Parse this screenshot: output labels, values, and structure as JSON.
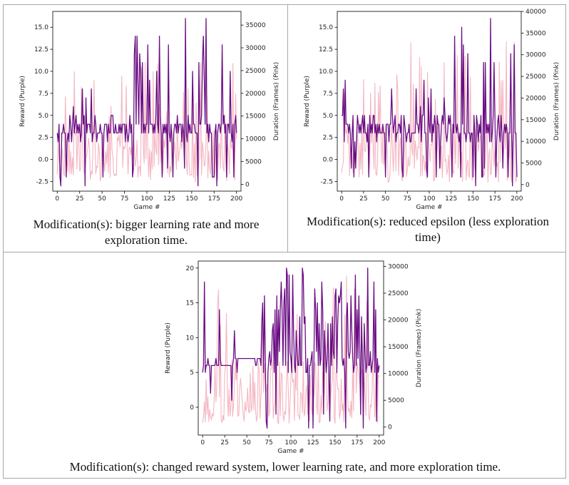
{
  "colors": {
    "reward": "#6a0d83",
    "duration": "#f4b6c2",
    "border": "#a7a7a7"
  },
  "charts": [
    {
      "caption": "Modification(s): bigger learning rate and more exploration time.",
      "chart_data": {
        "type": "line",
        "xlabel": "Game #",
        "ylabel_left": "Reward (Purple)",
        "ylabel_right": "Duration (Frames) (Pink)",
        "xlim": [
          -5,
          205
        ],
        "ylim_left": [
          -3.6,
          16.8
        ],
        "ylim_right": [
          -1500,
          38000
        ],
        "x_ticks": [
          0,
          25,
          50,
          75,
          100,
          125,
          150,
          175,
          200
        ],
        "y_ticks_left": [
          -2.5,
          0.0,
          2.5,
          5.0,
          7.5,
          10.0,
          12.5,
          15.0
        ],
        "y_ticks_right": [
          0,
          5000,
          10000,
          15000,
          20000,
          25000,
          30000,
          35000
        ],
        "series": [
          {
            "name": "Reward (Purple)",
            "axis": "left",
            "color": "#6a0d83",
            "seed": 11,
            "segments": [
              {
                "to": 80,
                "base": 3.5,
                "jitter": 1.3,
                "spikeP": 0.08,
                "spikeHi": 9.0,
                "spikeLo": -3.0,
                "dipP": 0.08
              },
              {
                "to": 201,
                "base": 3.5,
                "jitter": 1.2,
                "spikeP": 0.22,
                "spikeHi": 16.0,
                "spikeLo": -3.0,
                "dipP": 0.1
              }
            ]
          },
          {
            "name": "Duration (Frames) (Pink)",
            "axis": "right",
            "color": "#f4b6c2",
            "seed": 29,
            "segments": [
              {
                "to": 201,
                "base": 7000,
                "jitter": 5000,
                "spikeP": 0.12,
                "spikeHi": 27000,
                "spikeLo": 400,
                "dipP": 0.2
              }
            ]
          }
        ]
      }
    },
    {
      "caption": "Modification(s): reduced epsilon (less exploration time)",
      "chart_data": {
        "type": "line",
        "xlabel": "Game #",
        "ylabel_left": "Reward (Purple)",
        "ylabel_right": "Duration (Frames) (Pink)",
        "xlim": [
          -5,
          205
        ],
        "ylim_left": [
          -3.6,
          16.8
        ],
        "ylim_right": [
          -1500,
          40000
        ],
        "x_ticks": [
          0,
          25,
          50,
          75,
          100,
          125,
          150,
          175,
          200
        ],
        "y_ticks_left": [
          -2.5,
          0.0,
          2.5,
          5.0,
          7.5,
          10.0,
          12.5,
          15.0
        ],
        "y_ticks_right": [
          0,
          5000,
          10000,
          15000,
          20000,
          25000,
          30000,
          35000,
          40000
        ],
        "series": [
          {
            "name": "Reward (Purple)",
            "axis": "left",
            "color": "#6a0d83",
            "seed": 7,
            "segments": [
              {
                "to": 120,
                "base": 3.5,
                "jitter": 1.4,
                "spikeP": 0.07,
                "spikeHi": 9.0,
                "spikeLo": -2.5,
                "dipP": 0.1
              },
              {
                "to": 201,
                "base": 3.5,
                "jitter": 1.5,
                "spikeP": 0.14,
                "spikeHi": 16.0,
                "spikeLo": -3.0,
                "dipP": 0.14
              }
            ]
          },
          {
            "name": "Duration (Frames) (Pink)",
            "axis": "right",
            "color": "#f4b6c2",
            "seed": 41,
            "segments": [
              {
                "to": 201,
                "base": 8000,
                "jitter": 6000,
                "spikeP": 0.1,
                "spikeHi": 33000,
                "spikeLo": 500,
                "dipP": 0.18
              }
            ]
          }
        ]
      }
    },
    {
      "caption": "Modification(s): changed reward system, lower learning rate, and more exploration time.",
      "chart_data": {
        "type": "line",
        "xlabel": "Game #",
        "ylabel_left": "Reward (Purple)",
        "ylabel_right": "Duration (Frames) (Pink)",
        "xlim": [
          -5,
          205
        ],
        "ylim_left": [
          -4,
          21
        ],
        "ylim_right": [
          -1500,
          31000
        ],
        "x_ticks": [
          0,
          25,
          50,
          75,
          100,
          125,
          150,
          175,
          200
        ],
        "y_ticks_left": [
          0,
          5,
          10,
          15,
          20
        ],
        "y_ticks_right": [
          0,
          5000,
          10000,
          15000,
          20000,
          25000,
          30000
        ],
        "series": [
          {
            "name": "Reward (Purple)",
            "axis": "left",
            "color": "#6a0d83",
            "seed": 19,
            "segments": [
              {
                "to": 35,
                "base": 6,
                "jitter": 0.6,
                "spikeP": 0.05,
                "spikeHi": 20.0,
                "spikeLo": 1.0,
                "dipP": 0.05
              },
              {
                "to": 60,
                "base": 7,
                "jitter": 0.5,
                "spikeP": 0.03,
                "spikeHi": 11.0,
                "spikeLo": 5.0,
                "dipP": 0.05
              },
              {
                "to": 201,
                "base": 6.5,
                "jitter": 1.5,
                "spikeP": 0.38,
                "spikeHi": 20.0,
                "spikeLo": -3.5,
                "dipP": 0.1
              }
            ]
          },
          {
            "name": "Duration (Frames) (Pink)",
            "axis": "right",
            "color": "#f4b6c2",
            "seed": 53,
            "segments": [
              {
                "to": 201,
                "base": 7500,
                "jitter": 5500,
                "spikeP": 0.06,
                "spikeHi": 29000,
                "spikeLo": 600,
                "dipP": 0.22
              }
            ]
          }
        ]
      }
    }
  ]
}
